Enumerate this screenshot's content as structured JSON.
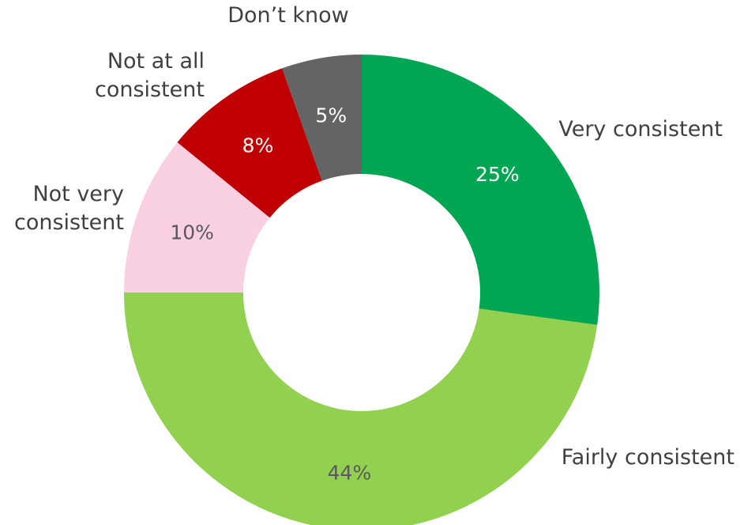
{
  "chart_data": {
    "type": "pie",
    "title": "",
    "slices": [
      {
        "label_lines": [
          "Very consistent"
        ],
        "value": 25,
        "value_label": "25%",
        "color": "#00a651",
        "label_color": "#ffffff"
      },
      {
        "label_lines": [
          "Fairly consistent"
        ],
        "value": 44,
        "value_label": "44%",
        "color": "#92d050",
        "label_color": "#595959"
      },
      {
        "label_lines": [
          "Not very",
          "consistent"
        ],
        "value": 10,
        "value_label": "10%",
        "color": "#f8d0e2",
        "label_color": "#595959"
      },
      {
        "label_lines": [
          "Not at all",
          "consistent"
        ],
        "value": 8,
        "value_label": "8%",
        "color": "#c00000",
        "label_color": "#ffffff"
      },
      {
        "label_lines": [
          "Don’t know"
        ],
        "value": 5,
        "value_label": "5%",
        "color": "#636466",
        "label_color": "#ffffff"
      }
    ]
  }
}
